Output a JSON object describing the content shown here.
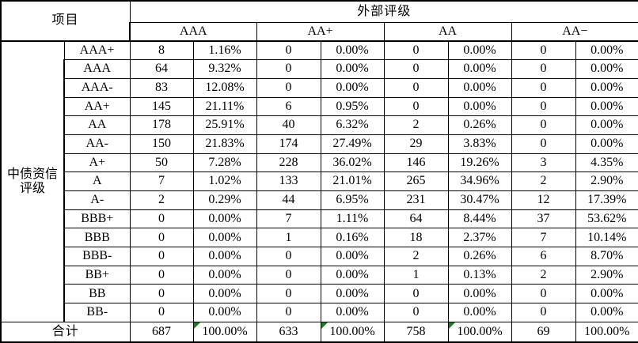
{
  "header": {
    "project_label": "项目",
    "external_rating_label": "外部评级",
    "rating_columns": [
      "AAA",
      "AA+",
      "AA",
      "AA−"
    ]
  },
  "left_axis": {
    "label_lines": [
      "中债资信",
      "评级"
    ]
  },
  "colors": {
    "border": "#000000",
    "background": "#ffffff",
    "flag_triangle": "#1e7a1e"
  },
  "table": {
    "rows": [
      {
        "label": "AAA+",
        "cells": [
          "8",
          "1.16%",
          "0",
          "0.00%",
          "0",
          "0.00%",
          "0",
          "0.00%"
        ]
      },
      {
        "label": "AAA",
        "cells": [
          "64",
          "9.32%",
          "0",
          "0.00%",
          "0",
          "0.00%",
          "0",
          "0.00%"
        ]
      },
      {
        "label": "AAA-",
        "cells": [
          "83",
          "12.08%",
          "0",
          "0.00%",
          "0",
          "0.00%",
          "0",
          "0.00%"
        ]
      },
      {
        "label": "AA+",
        "cells": [
          "145",
          "21.11%",
          "6",
          "0.95%",
          "0",
          "0.00%",
          "0",
          "0.00%"
        ]
      },
      {
        "label": "AA",
        "cells": [
          "178",
          "25.91%",
          "40",
          "6.32%",
          "2",
          "0.26%",
          "0",
          "0.00%"
        ]
      },
      {
        "label": "AA-",
        "cells": [
          "150",
          "21.83%",
          "174",
          "27.49%",
          "29",
          "3.83%",
          "0",
          "0.00%"
        ]
      },
      {
        "label": "A+",
        "cells": [
          "50",
          "7.28%",
          "228",
          "36.02%",
          "146",
          "19.26%",
          "3",
          "4.35%"
        ]
      },
      {
        "label": "A",
        "cells": [
          "7",
          "1.02%",
          "133",
          "21.01%",
          "265",
          "34.96%",
          "2",
          "2.90%"
        ]
      },
      {
        "label": "A-",
        "cells": [
          "2",
          "0.29%",
          "44",
          "6.95%",
          "231",
          "30.47%",
          "12",
          "17.39%"
        ]
      },
      {
        "label": "BBB+",
        "cells": [
          "0",
          "0.00%",
          "7",
          "1.11%",
          "64",
          "8.44%",
          "37",
          "53.62%"
        ]
      },
      {
        "label": "BBB",
        "cells": [
          "0",
          "0.00%",
          "1",
          "0.16%",
          "18",
          "2.37%",
          "7",
          "10.14%"
        ]
      },
      {
        "label": "BBB-",
        "cells": [
          "0",
          "0.00%",
          "0",
          "0.00%",
          "2",
          "0.26%",
          "6",
          "8.70%"
        ]
      },
      {
        "label": "BB+",
        "cells": [
          "0",
          "0.00%",
          "0",
          "0.00%",
          "1",
          "0.13%",
          "2",
          "2.90%"
        ]
      },
      {
        "label": "BB",
        "cells": [
          "0",
          "0.00%",
          "0",
          "0.00%",
          "0",
          "0.00%",
          "0",
          "0.00%"
        ]
      },
      {
        "label": "BB-",
        "cells": [
          "0",
          "0.00%",
          "0",
          "0.00%",
          "0",
          "0.00%",
          "0",
          "0.00%"
        ]
      }
    ],
    "total": {
      "label": "合计",
      "cells": [
        "687",
        "100.00%",
        "633",
        "100.00%",
        "758",
        "100.00%",
        "69",
        "100.00%"
      ],
      "flag_triangles": [
        false,
        true,
        false,
        true,
        false,
        true,
        false,
        false
      ]
    }
  }
}
